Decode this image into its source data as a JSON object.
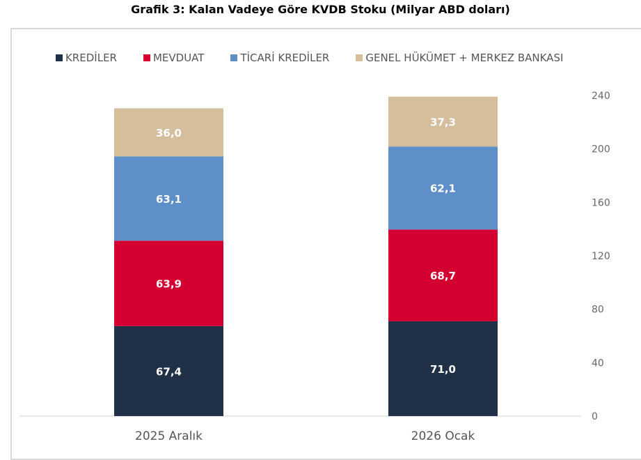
{
  "chart_data": {
    "type": "bar",
    "stacked": true,
    "title": "Grafik 3: Kalan Vadeye Göre KVDB Stoku (Milyar ABD doları)",
    "categories": [
      "2025 Aralık",
      "2026 Ocak"
    ],
    "series": [
      {
        "name": "KREDİLER",
        "color": "#1f3047",
        "values": [
          67.4,
          71.0
        ],
        "labels": [
          "67,4",
          "71,0"
        ]
      },
      {
        "name": "MEVDUAT",
        "color": "#d50032",
        "values": [
          63.9,
          68.7
        ],
        "labels": [
          "63,9",
          "68,7"
        ]
      },
      {
        "name": "TİCARİ KREDİLER",
        "color": "#5f8fc9",
        "values": [
          63.1,
          62.1
        ],
        "labels": [
          "63,1",
          "62,1"
        ]
      },
      {
        "name": "GENEL HÜKÜMET + MERKEZ BANKASI",
        "color": "#d4be9c",
        "values": [
          36.0,
          37.3
        ],
        "labels": [
          "36,0",
          "37,3"
        ]
      }
    ],
    "ylim": [
      0,
      240
    ],
    "yticks": [
      0,
      40,
      80,
      120,
      160,
      200,
      240
    ],
    "yaxis_position": "right",
    "legend": "top",
    "grid": false
  }
}
